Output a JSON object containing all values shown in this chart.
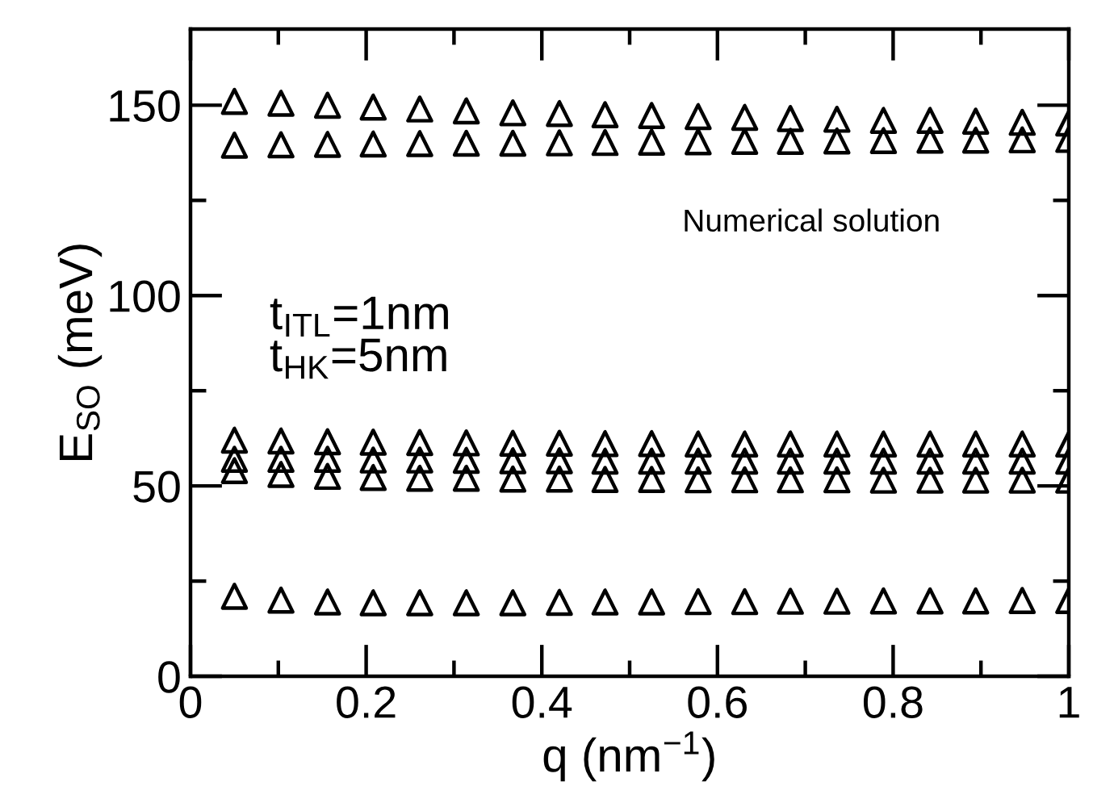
{
  "chart_data": {
    "type": "scatter",
    "xlabel": "q (nm$^{−1}$)",
    "ylabel": "E$_{SO}$ (meV)",
    "annotations": [
      "Numerical solution",
      "t$_{ITL}$=1nm",
      "t$_{HK}$=5nm"
    ],
    "x": [
      0.05,
      0.103,
      0.156,
      0.208,
      0.261,
      0.314,
      0.367,
      0.42,
      0.472,
      0.525,
      0.578,
      0.631,
      0.683,
      0.736,
      0.789,
      0.842,
      0.894,
      0.947,
      1.0
    ],
    "series": [
      {
        "color": "#000000",
        "values": [
          151,
          150.5,
          150,
          149.5,
          149,
          148.5,
          148,
          147.8,
          147.5,
          147.3,
          147,
          146.8,
          146.5,
          146.3,
          146,
          146,
          145.8,
          145.5,
          145.3
        ]
      },
      {
        "color": "#000000",
        "values": [
          139.5,
          139.6,
          139.7,
          139.8,
          139.9,
          140,
          140,
          140.1,
          140.2,
          140.3,
          140.4,
          140.5,
          140.5,
          140.6,
          140.7,
          140.8,
          140.8,
          140.9,
          141
        ]
      },
      {
        "color": "#000000",
        "values": [
          62,
          61.8,
          61.6,
          61.5,
          61.4,
          61.3,
          61.2,
          61.2,
          61.1,
          61.1,
          61,
          61,
          61,
          61,
          61,
          61,
          61,
          61,
          61
        ]
      },
      {
        "color": "#000000",
        "values": [
          57,
          57,
          57,
          56.8,
          56.8,
          56.7,
          56.6,
          56.6,
          56.5,
          56.5,
          56.5,
          56.5,
          56.5,
          56.5,
          56.5,
          56.5,
          56.5,
          56.5,
          56.5
        ]
      },
      {
        "color": "#000000",
        "values": [
          54,
          53,
          52.5,
          52.2,
          52,
          52,
          51.8,
          51.8,
          51.7,
          51.7,
          51.6,
          51.6,
          51.6,
          51.6,
          51.5,
          51.5,
          51.5,
          51.5,
          51.5
        ]
      },
      {
        "color": "#000000",
        "values": [
          21,
          20,
          19.5,
          19.3,
          19.3,
          19.3,
          19.3,
          19.4,
          19.5,
          19.5,
          19.6,
          19.6,
          19.7,
          19.7,
          19.8,
          19.8,
          19.8,
          19.9,
          19.9
        ]
      }
    ],
    "marker": "triangle",
    "grid": false,
    "xlim": [
      0,
      1
    ],
    "ylim": [
      0,
      170
    ],
    "xticks": [
      0,
      {
        "value": 0.1,
        "label": null
      },
      0.2,
      {
        "value": 0.3,
        "label": null
      },
      0.4,
      {
        "value": 0.5,
        "label": null
      },
      0.6,
      {
        "value": 0.7,
        "label": null
      },
      0.8,
      {
        "value": 0.9,
        "label": null
      },
      1
    ],
    "yticks": [
      0,
      {
        "value": 25,
        "label": null
      },
      50,
      {
        "value": 75,
        "label": null
      },
      100,
      {
        "value": 125,
        "label": null
      },
      150
    ]
  }
}
